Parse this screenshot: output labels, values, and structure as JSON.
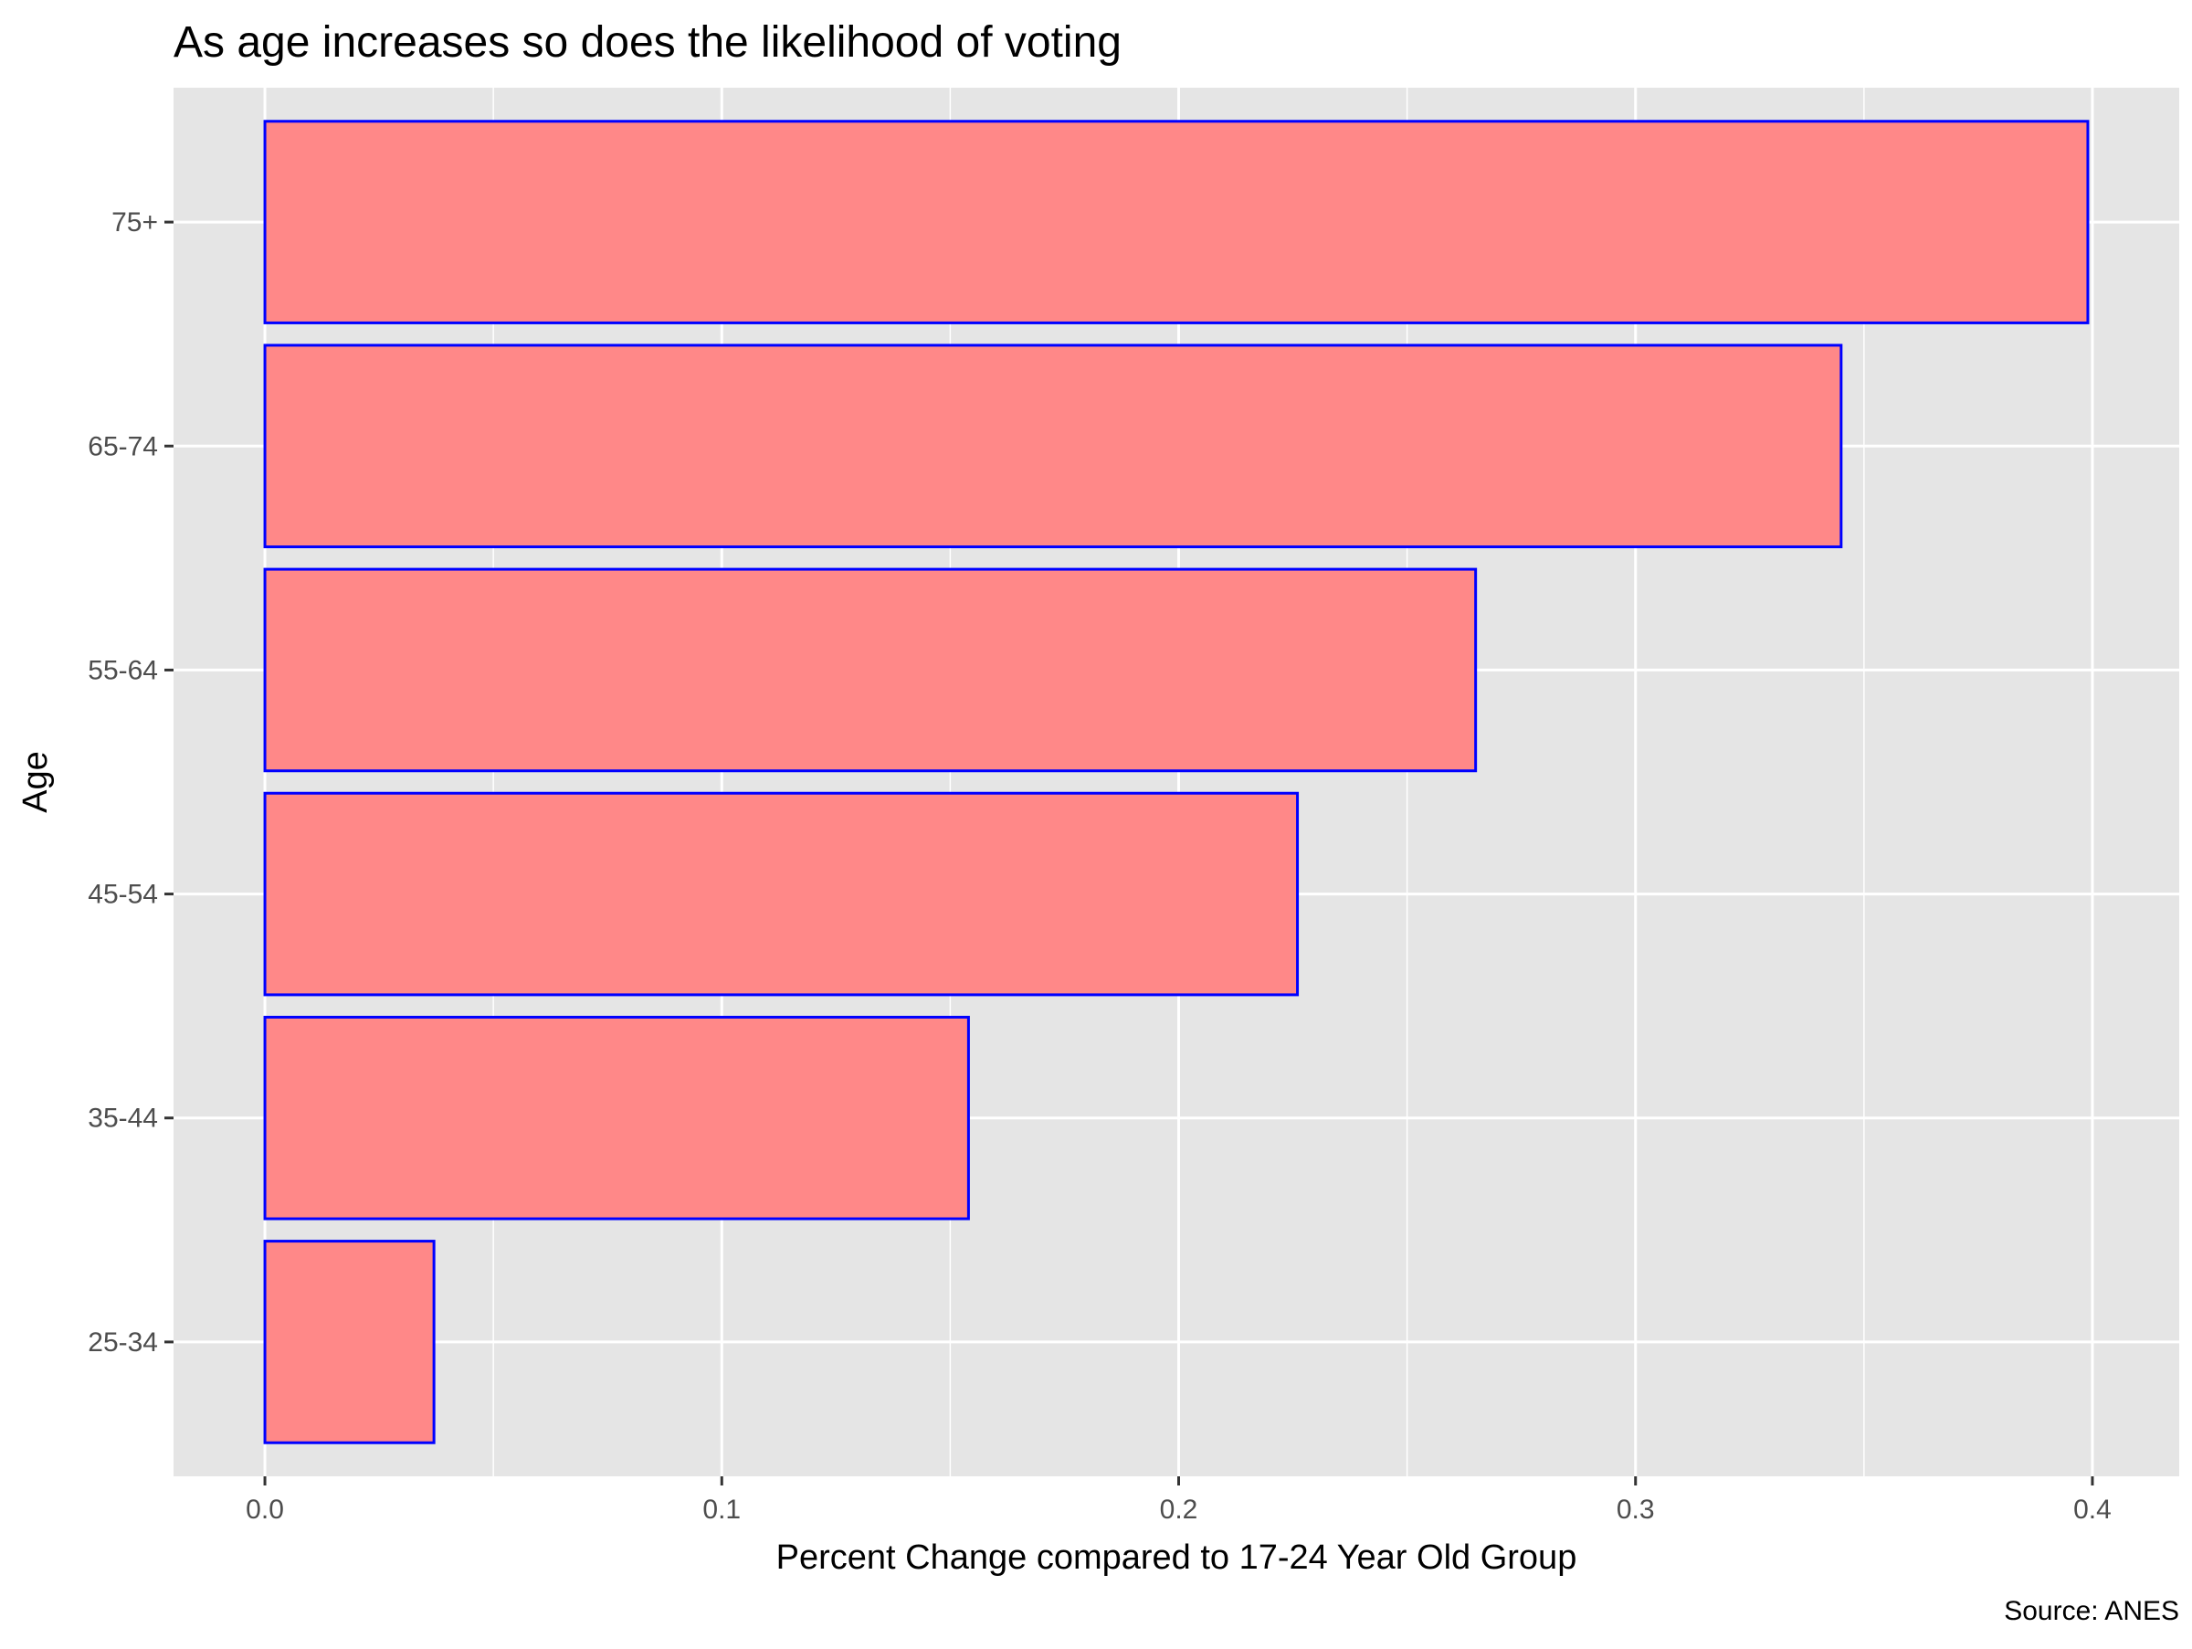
{
  "chart_data": {
    "type": "bar",
    "orientation": "horizontal",
    "title": "As age increases so does the likelihood of voting",
    "xlabel": "Percent Change compared to 17-24 Year Old Group",
    "ylabel": "Age",
    "caption": "Source: ANES",
    "categories": [
      "25-34",
      "35-44",
      "45-54",
      "55-64",
      "65-74",
      "75+"
    ],
    "values": [
      0.037,
      0.154,
      0.226,
      0.265,
      0.345,
      0.399
    ],
    "xlim": [
      -0.02,
      0.419
    ],
    "xticks": [
      {
        "value": 0.0,
        "label": "0.0"
      },
      {
        "value": 0.1,
        "label": "0.1"
      },
      {
        "value": 0.2,
        "label": "0.2"
      },
      {
        "value": 0.3,
        "label": "0.3"
      },
      {
        "value": 0.4,
        "label": "0.4"
      }
    ],
    "x_minor_gridlines": [
      0.05,
      0.15,
      0.25,
      0.35
    ],
    "grid": true,
    "legend": "none",
    "colors": {
      "panel_background": "#e5e5e5",
      "gridline": "#ffffff",
      "bar_fill": "#ff8888",
      "bar_outline": "#0000ff"
    }
  }
}
